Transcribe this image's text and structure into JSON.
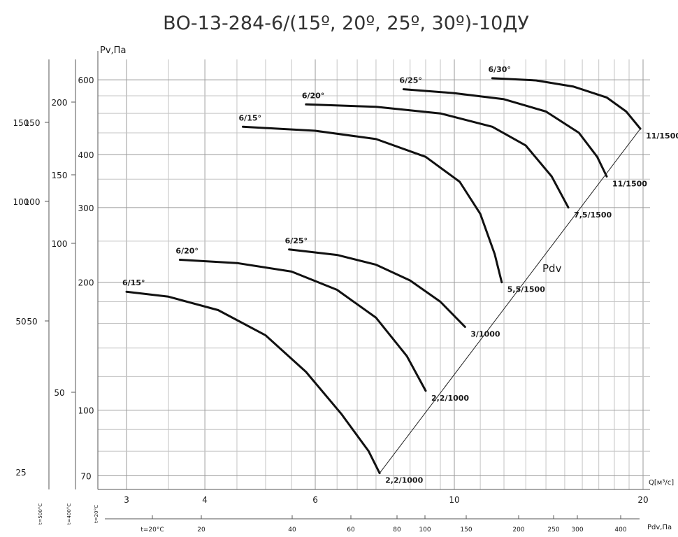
{
  "chart_data": {
    "type": "line",
    "title": "ВО-13-284-6/(15º, 20º, 25º, 30º)-10ДУ",
    "ylabel": "Pv,Па",
    "xlabel": "Q[м³/с]",
    "x2label": "Pdv,Па",
    "x_scale": "log",
    "y_scale": "log",
    "xlim": [
      2.7,
      20
    ],
    "ylim": [
      65,
      650
    ],
    "x_ticks": [
      "3",
      "4",
      "6",
      "10",
      "20"
    ],
    "y_ticks": [
      "70",
      "100",
      "200",
      "300",
      "400",
      "600"
    ],
    "y_ticks_2": [
      "50",
      "100",
      "150",
      "200"
    ],
    "y_ticks_3": [
      "25",
      "50",
      "100",
      "150"
    ],
    "y_ticks_4": [
      "50",
      "100",
      "150"
    ],
    "x2_ticks": [
      "t=20°C",
      "20",
      "40",
      "60",
      "80",
      "100",
      "150",
      "200",
      "250",
      "300",
      "400"
    ],
    "temp_labels": [
      "t=500°C",
      "t=400°C",
      "t=20°C"
    ],
    "line_label": "Pdv",
    "series": [
      {
        "name": "6/15°",
        "points": [
          [
            3.0,
            190
          ],
          [
            3.5,
            185
          ],
          [
            4.2,
            172
          ],
          [
            5.0,
            150
          ],
          [
            5.8,
            123
          ],
          [
            6.6,
            98
          ],
          [
            7.3,
            80
          ],
          [
            7.6,
            71
          ]
        ],
        "end_label": "2,2/1000"
      },
      {
        "name": "6/20°",
        "points": [
          [
            3.65,
            226
          ],
          [
            4.5,
            222
          ],
          [
            5.5,
            212
          ],
          [
            6.5,
            192
          ],
          [
            7.5,
            165
          ],
          [
            8.4,
            134
          ],
          [
            9.0,
            111
          ]
        ],
        "end_label": "2,2/1000"
      },
      {
        "name": "6/25°",
        "points": [
          [
            5.45,
            239
          ],
          [
            6.5,
            232
          ],
          [
            7.5,
            220
          ],
          [
            8.5,
            202
          ],
          [
            9.5,
            180
          ],
          [
            10.4,
            157
          ]
        ],
        "end_label": "3/1000"
      },
      {
        "name": "6/15°",
        "points": [
          [
            4.6,
            465
          ],
          [
            6.0,
            455
          ],
          [
            7.5,
            435
          ],
          [
            9.0,
            395
          ],
          [
            10.2,
            345
          ],
          [
            11.0,
            290
          ],
          [
            11.6,
            233
          ],
          [
            11.9,
            200
          ]
        ],
        "end_label": "5,5/1500"
      },
      {
        "name": "6/20°",
        "points": [
          [
            5.8,
            525
          ],
          [
            7.5,
            518
          ],
          [
            9.5,
            500
          ],
          [
            11.5,
            465
          ],
          [
            13.0,
            420
          ],
          [
            14.3,
            355
          ],
          [
            15.2,
            300
          ]
        ],
        "end_label": "7,5/1500"
      },
      {
        "name": "6/25°",
        "points": [
          [
            8.3,
            570
          ],
          [
            10.0,
            558
          ],
          [
            12.0,
            540
          ],
          [
            14.0,
            505
          ],
          [
            15.8,
            450
          ],
          [
            16.9,
            395
          ],
          [
            17.5,
            355
          ]
        ],
        "end_label": "11/1500"
      },
      {
        "name": "6/30°",
        "points": [
          [
            11.5,
            605
          ],
          [
            13.5,
            598
          ],
          [
            15.5,
            578
          ],
          [
            17.5,
            545
          ],
          [
            18.8,
            505
          ],
          [
            19.8,
            460
          ]
        ],
        "end_label": "11/1500"
      }
    ]
  }
}
